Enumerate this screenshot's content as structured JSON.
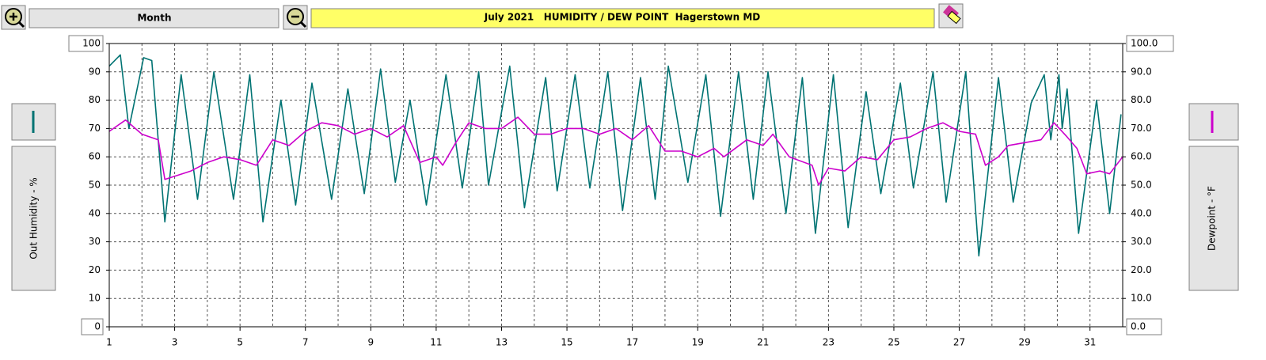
{
  "toolbar": {
    "period": "Month"
  },
  "chart_data": {
    "type": "line",
    "title": "July 2021   HUMIDITY / DEW POINT  Hagerstown MD",
    "ylabel": "Out Humidity - %",
    "y2label": "Dewpoint - °F",
    "xlim": [
      1,
      32
    ],
    "xticks": [
      1,
      3,
      5,
      7,
      9,
      11,
      13,
      15,
      17,
      19,
      21,
      23,
      25,
      27,
      29,
      31
    ],
    "xminor_ticks": [
      2,
      4,
      6,
      8,
      10,
      12,
      14,
      16,
      18,
      20,
      22,
      24,
      26,
      28,
      30,
      32
    ],
    "ylim": [
      0,
      100
    ],
    "yticks": [
      0,
      10,
      20,
      30,
      40,
      50,
      60,
      70,
      80,
      90,
      100
    ],
    "y2lim": [
      0,
      100
    ],
    "y2ticks": [
      {
        "value": 0,
        "label": "0.0"
      },
      {
        "value": 10,
        "label": "10.0"
      },
      {
        "value": 20,
        "label": "20.0"
      },
      {
        "value": 30,
        "label": "30.0"
      },
      {
        "value": 40,
        "label": "40.0"
      },
      {
        "value": 50,
        "label": "50.0"
      },
      {
        "value": 60,
        "label": "60.0"
      },
      {
        "value": 70,
        "label": "70.0"
      },
      {
        "value": 80,
        "label": "80.0"
      },
      {
        "value": 90,
        "label": "90.0"
      },
      {
        "value": 100,
        "label": "100.0"
      }
    ],
    "grid": true,
    "series": [
      {
        "color": "#007373",
        "axis": "y",
        "x": [
          1,
          1.34,
          1.6,
          2.05,
          2.3,
          2.7,
          3.2,
          3.7,
          4.2,
          4.8,
          5.3,
          5.7,
          6.25,
          6.7,
          7.2,
          7.8,
          8.3,
          8.8,
          9.3,
          9.75,
          10.2,
          10.7,
          11.3,
          11.8,
          12.3,
          12.6,
          13.25,
          13.7,
          14.35,
          14.7,
          15.25,
          15.7,
          16.25,
          16.7,
          17.25,
          17.7,
          18.1,
          18.7,
          19.25,
          19.7,
          20.25,
          20.7,
          21.15,
          21.7,
          22.2,
          22.6,
          23.15,
          23.6,
          24.15,
          24.6,
          25.2,
          25.6,
          26.2,
          26.6,
          27.2,
          27.6,
          28.2,
          28.65,
          29.2,
          29.6,
          29.8,
          30.05,
          30.15,
          30.3,
          30.65,
          31.2,
          31.6,
          31.95
        ],
        "values": [
          92,
          96,
          70,
          95,
          94,
          37,
          89,
          45,
          90,
          45,
          89,
          37,
          80,
          43,
          86,
          45,
          84,
          47,
          91,
          51,
          80,
          43,
          89,
          49,
          90,
          50,
          92,
          42,
          88,
          48,
          89,
          49,
          90,
          41,
          88,
          45,
          92,
          51,
          89,
          39,
          90,
          45,
          90,
          40,
          88,
          33,
          89,
          35,
          83,
          47,
          86,
          49,
          90,
          44,
          90,
          25,
          88,
          44,
          79,
          89,
          66,
          89,
          70,
          84,
          33,
          80,
          40,
          75
        ]
      },
      {
        "color": "#cc00cc",
        "axis": "y2",
        "x": [
          1,
          1.5,
          2,
          2.5,
          2.7,
          3.5,
          4,
          4.5,
          5,
          5.5,
          6,
          6.5,
          7,
          7.5,
          8,
          8.5,
          9,
          9.5,
          10,
          10.5,
          11,
          11.2,
          11.6,
          12,
          12.5,
          13,
          13.5,
          14,
          14.5,
          15,
          15.5,
          16,
          16.5,
          17,
          17.5,
          18,
          18.5,
          19,
          19.5,
          19.8,
          20.5,
          21,
          21.3,
          21.8,
          22.5,
          22.7,
          23,
          23.5,
          24,
          24.5,
          25,
          25.5,
          26,
          26.5,
          27,
          27.5,
          27.8,
          28.2,
          28.5,
          29,
          29.5,
          29.9,
          30.3,
          30.6,
          30.9,
          31.3,
          31.6,
          32
        ],
        "values": [
          69,
          73,
          68,
          66,
          52,
          55,
          58,
          60,
          59,
          57,
          66,
          64,
          69,
          72,
          71,
          68,
          70,
          67,
          71,
          58,
          60,
          57,
          65,
          72,
          70,
          70,
          74,
          68,
          68,
          70,
          70,
          68,
          70,
          66,
          71,
          62,
          62,
          60,
          63,
          60,
          66,
          64,
          68,
          60,
          57,
          50,
          56,
          55,
          60,
          59,
          66,
          67,
          70,
          72,
          69,
          68,
          57,
          60,
          64,
          65,
          66,
          72,
          67,
          63,
          54,
          55,
          54,
          60
        ]
      }
    ]
  }
}
